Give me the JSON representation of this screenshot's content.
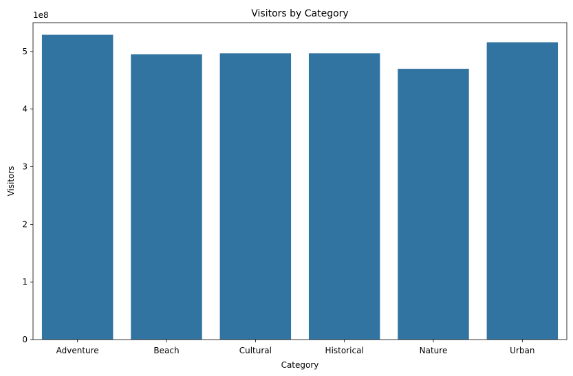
{
  "chart_data": {
    "type": "bar",
    "title": "Visitors by Category",
    "xlabel": "Category",
    "ylabel": "Visitors",
    "y_offset_label": "1e8",
    "categories": [
      "Adventure",
      "Beach",
      "Cultural",
      "Historical",
      "Nature",
      "Urban"
    ],
    "values": [
      529000000,
      495000000,
      497000000,
      497000000,
      470000000,
      516000000
    ],
    "ylim": [
      0,
      550000000
    ],
    "yticks": [
      0,
      100000000,
      200000000,
      300000000,
      400000000,
      500000000
    ],
    "ytick_labels": [
      "0",
      "1",
      "2",
      "3",
      "4",
      "5"
    ],
    "grid": false,
    "bar_color": "#3274a1"
  }
}
